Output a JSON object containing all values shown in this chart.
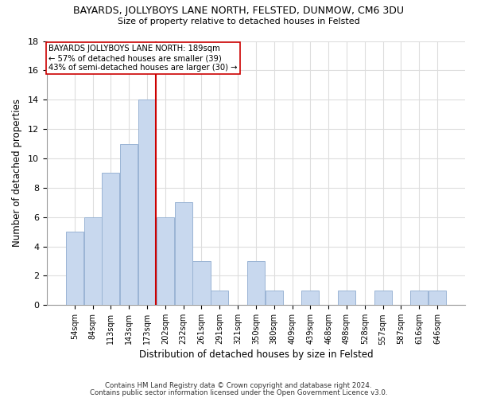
{
  "title": "BAYARDS, JOLLYBOYS LANE NORTH, FELSTED, DUNMOW, CM6 3DU",
  "subtitle": "Size of property relative to detached houses in Felsted",
  "xlabel": "Distribution of detached houses by size in Felsted",
  "ylabel": "Number of detached properties",
  "bar_color": "#c8d8ee",
  "bar_edge_color": "#9ab4d4",
  "categories": [
    "54sqm",
    "84sqm",
    "113sqm",
    "143sqm",
    "173sqm",
    "202sqm",
    "232sqm",
    "261sqm",
    "291sqm",
    "321sqm",
    "350sqm",
    "380sqm",
    "409sqm",
    "439sqm",
    "468sqm",
    "498sqm",
    "528sqm",
    "557sqm",
    "587sqm",
    "616sqm",
    "646sqm"
  ],
  "values": [
    5,
    6,
    9,
    11,
    14,
    6,
    7,
    3,
    1,
    0,
    3,
    1,
    0,
    1,
    0,
    1,
    0,
    1,
    0,
    1,
    1
  ],
  "ylim": [
    0,
    18
  ],
  "yticks": [
    0,
    2,
    4,
    6,
    8,
    10,
    12,
    14,
    16,
    18
  ],
  "vline_x_idx": 5,
  "vline_color": "#cc0000",
  "annotation_title": "BAYARDS JOLLYBOYS LANE NORTH: 189sqm",
  "annotation_line1": "← 57% of detached houses are smaller (39)",
  "annotation_line2": "43% of semi-detached houses are larger (30) →",
  "footer1": "Contains HM Land Registry data © Crown copyright and database right 2024.",
  "footer2": "Contains public sector information licensed under the Open Government Licence v3.0.",
  "background_color": "#ffffff",
  "grid_color": "#dddddd"
}
